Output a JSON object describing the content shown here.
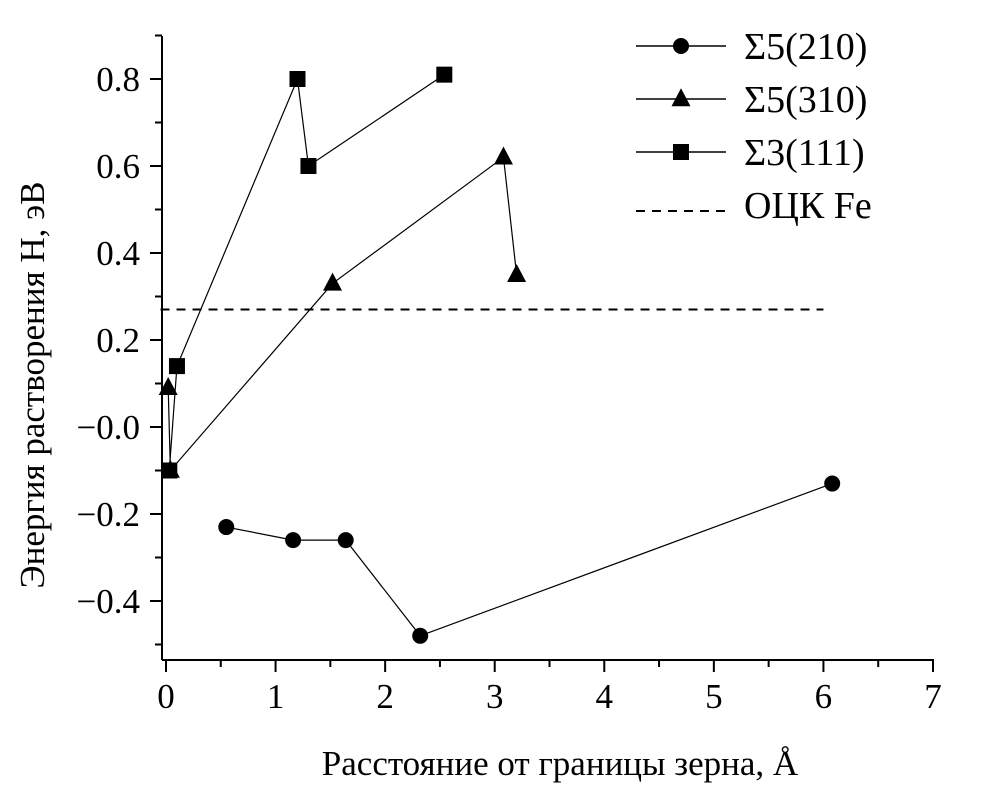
{
  "chart_data": {
    "type": "line",
    "xlabel": "Расстояние от границы зерна, Å",
    "ylabel": "Энергия растворения H, эВ",
    "xlim": [
      -0.05,
      7
    ],
    "ylim": [
      -0.52,
      0.9
    ],
    "x_ticks": [
      0,
      1,
      2,
      3,
      4,
      5,
      6,
      7
    ],
    "x_tick_labels": [
      "0",
      "1",
      "2",
      "3",
      "4",
      "5",
      "6",
      "7"
    ],
    "y_ticks": [
      0.8,
      0.6,
      0.4,
      0.2,
      0.0,
      -0.2,
      -0.4
    ],
    "y_tick_labels": [
      "0.8",
      "0.6",
      "0.4",
      "0.2",
      "−0.0",
      "−0.2",
      "−0.4"
    ],
    "grid": false,
    "legend_position": "top-right",
    "series": [
      {
        "name": "Σ5(210)",
        "marker": "circle",
        "points": [
          [
            0.55,
            -0.23
          ],
          [
            1.16,
            -0.26
          ],
          [
            1.64,
            -0.26
          ],
          [
            2.32,
            -0.48
          ],
          [
            6.08,
            -0.13
          ]
        ]
      },
      {
        "name": "Σ5(310)",
        "marker": "triangle",
        "points": [
          [
            0.02,
            0.09
          ],
          [
            0.04,
            -0.1
          ],
          [
            1.52,
            0.33
          ],
          [
            3.08,
            0.62
          ],
          [
            3.2,
            0.35
          ]
        ]
      },
      {
        "name": "Σ3(111)",
        "marker": "square",
        "points": [
          [
            0.03,
            -0.1
          ],
          [
            0.1,
            0.14
          ],
          [
            1.2,
            0.8
          ],
          [
            1.3,
            0.6
          ],
          [
            2.54,
            0.81
          ]
        ]
      }
    ],
    "reference_line": {
      "name": "ОЦК Fe",
      "style": "dashed",
      "y": 0.27,
      "x_range": [
        -0.05,
        6.0
      ]
    }
  }
}
